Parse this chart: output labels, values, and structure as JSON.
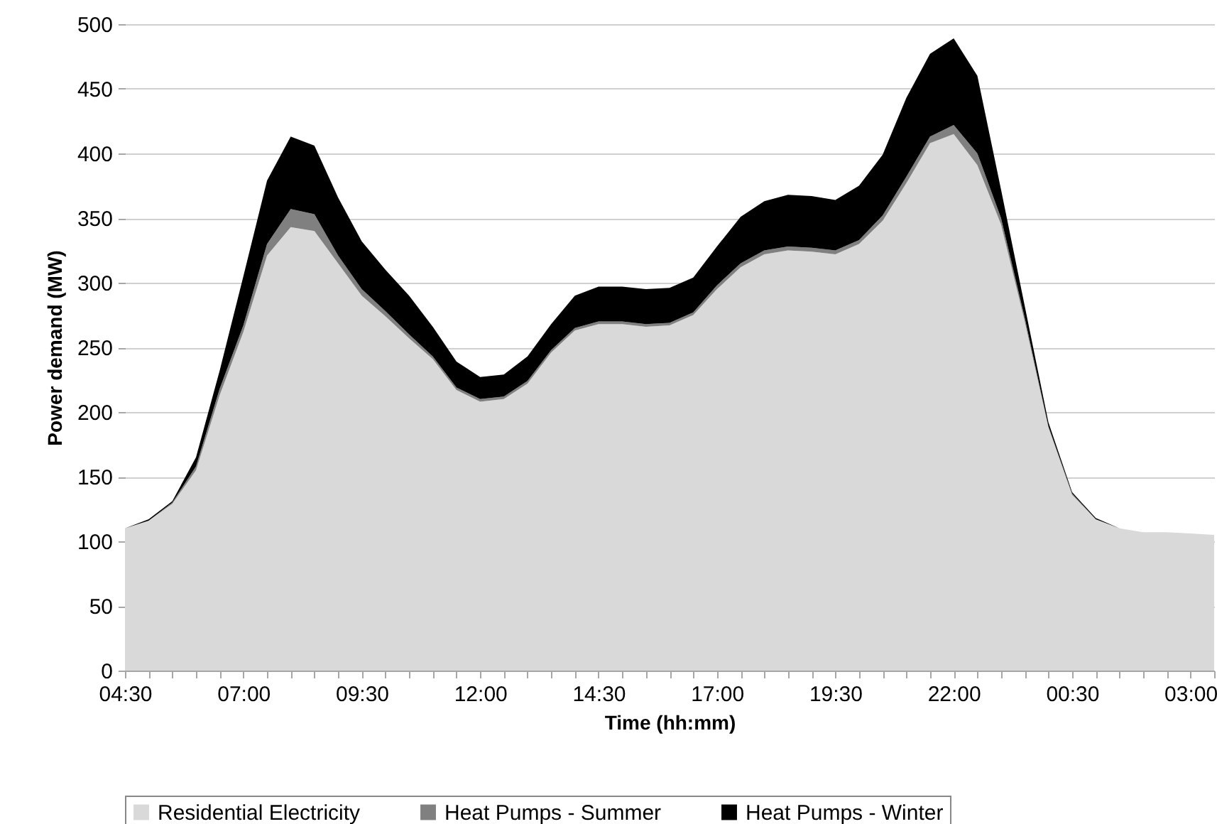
{
  "chart_data": {
    "type": "area",
    "xlabel": "Time (hh:mm)",
    "ylabel": "Power demand (MW)",
    "categories": [
      "04:30",
      null,
      null,
      null,
      null,
      "07:00",
      null,
      null,
      null,
      null,
      "09:30",
      null,
      null,
      null,
      null,
      "12:00",
      null,
      null,
      null,
      null,
      "14:30",
      null,
      null,
      null,
      null,
      "17:00",
      null,
      null,
      null,
      null,
      "19:30",
      null,
      null,
      null,
      null,
      "22:00",
      null,
      null,
      null,
      null,
      "00:30",
      null,
      null,
      null,
      null,
      "03:00",
      null
    ],
    "stacked": true,
    "series": [
      {
        "name": "Residential Electricity",
        "color": "#d9d9d9",
        "values": [
          110,
          116,
          129,
          155,
          213,
          262,
          321,
          343,
          340,
          315,
          290,
          274,
          257,
          241,
          217,
          208,
          210,
          222,
          246,
          263,
          268,
          268,
          266,
          267,
          275,
          295,
          312,
          322,
          325,
          324,
          322,
          330,
          348,
          377,
          408,
          415,
          391,
          345,
          270,
          188,
          136,
          117,
          110,
          107,
          107,
          106,
          105
        ]
      },
      {
        "name": "Heat Pumps - Summer",
        "color": "#808080",
        "values": [
          0,
          0,
          1,
          3,
          5,
          5,
          9,
          14,
          13,
          6,
          5,
          4,
          3,
          2,
          2,
          2,
          2,
          2,
          2,
          2,
          2,
          2,
          2,
          2,
          2,
          3,
          3,
          3,
          3,
          3,
          3,
          3,
          4,
          5,
          5,
          7,
          9,
          5,
          3,
          1,
          1,
          0,
          0,
          0,
          0,
          0,
          0
        ]
      },
      {
        "name": "Heat Pumps - Winter",
        "color": "#000000",
        "values": [
          0,
          1,
          1,
          7,
          14,
          38,
          49,
          56,
          53,
          45,
          37,
          32,
          30,
          23,
          20,
          17,
          17,
          19,
          20,
          25,
          27,
          27,
          27,
          27,
          27,
          30,
          36,
          38,
          40,
          40,
          39,
          42,
          47,
          61,
          64,
          67,
          60,
          22,
          9,
          3,
          1,
          1,
          0,
          0,
          0,
          0,
          0
        ]
      }
    ],
    "ylim": [
      0,
      500
    ],
    "yticks": [
      0,
      50,
      100,
      150,
      200,
      250,
      300,
      350,
      400,
      450,
      500
    ],
    "grid": "y",
    "legend": "bottom"
  }
}
